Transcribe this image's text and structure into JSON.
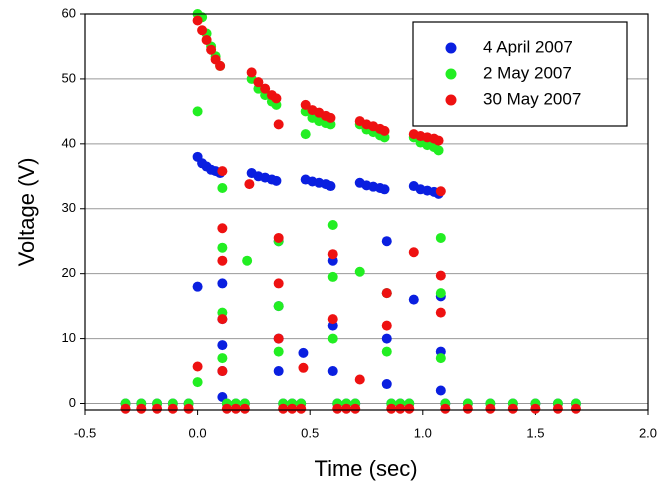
{
  "chart_data": {
    "type": "scatter",
    "x_label": "Time (sec)",
    "y_label": "Voltage (V)",
    "xlim": [
      -0.5,
      2.0
    ],
    "ylim": [
      -1,
      60
    ],
    "xticks": [
      -0.5,
      {
        "value": 0,
        "label": "0.0"
      },
      0.5,
      {
        "value": 1,
        "label": "1.0"
      },
      1.5,
      {
        "value": 2,
        "label": "2.0"
      }
    ],
    "yticks": [
      0,
      10,
      20,
      30,
      40,
      50,
      60
    ],
    "grid": true,
    "legend": "upper right",
    "series": [
      {
        "name": "4 April 2007",
        "color": "#0a1fe0",
        "x": [
          -0.32,
          -0.25,
          -0.18,
          -0.11,
          -0.04,
          0.0,
          0.0,
          0.02,
          0.04,
          0.06,
          0.08,
          0.1,
          0.11,
          0.11,
          0.11,
          0.11,
          0.11,
          0.13,
          0.17,
          0.21,
          0.24,
          0.27,
          0.3,
          0.33,
          0.35,
          0.36,
          0.36,
          0.36,
          0.36,
          0.38,
          0.42,
          0.46,
          0.47,
          0.48,
          0.51,
          0.54,
          0.57,
          0.59,
          0.6,
          0.6,
          0.6,
          0.62,
          0.66,
          0.7,
          0.72,
          0.75,
          0.78,
          0.81,
          0.83,
          0.84,
          0.84,
          0.84,
          0.84,
          0.86,
          0.9,
          0.94,
          0.96,
          0.96,
          0.99,
          1.02,
          1.05,
          1.07,
          1.08,
          1.08,
          1.08,
          1.1,
          1.2,
          1.3,
          1.4,
          1.5,
          1.6,
          1.68
        ],
        "y": [
          0,
          0,
          0,
          0,
          0,
          18,
          38,
          37,
          36.5,
          36,
          35.8,
          35.5,
          18.5,
          13,
          9,
          5,
          1,
          0,
          0,
          0,
          35.5,
          35,
          34.8,
          34.5,
          34.3,
          25,
          15,
          10,
          5,
          0,
          0,
          0,
          7.8,
          34.5,
          34.2,
          34,
          33.8,
          33.5,
          22,
          12,
          5,
          0,
          0,
          0,
          34,
          33.6,
          33.4,
          33.2,
          33,
          25,
          17,
          10,
          3,
          0,
          0,
          0,
          16,
          33.5,
          33,
          32.8,
          32.6,
          32.3,
          16.5,
          8,
          2,
          0,
          0,
          0,
          0,
          0,
          0,
          0
        ]
      },
      {
        "name": "2 May 2007",
        "color": "#22ee22",
        "x": [
          -0.32,
          -0.25,
          -0.18,
          -0.11,
          -0.04,
          0.0,
          0.0,
          0.02,
          0.0,
          0.04,
          0.06,
          0.08,
          0.1,
          0.11,
          0.11,
          0.11,
          0.11,
          0.13,
          0.17,
          0.21,
          0.22,
          0.24,
          0.27,
          0.3,
          0.33,
          0.35,
          0.36,
          0.36,
          0.36,
          0.38,
          0.42,
          0.46,
          0.48,
          0.48,
          0.51,
          0.54,
          0.57,
          0.59,
          0.6,
          0.6,
          0.6,
          0.62,
          0.66,
          0.7,
          0.72,
          0.72,
          0.75,
          0.78,
          0.81,
          0.83,
          0.84,
          0.84,
          0.86,
          0.9,
          0.94,
          0.96,
          0.99,
          1.02,
          1.05,
          1.07,
          1.08,
          1.08,
          1.08,
          1.1,
          1.2,
          1.3,
          1.4,
          1.5,
          1.6,
          1.68
        ],
        "y": [
          0,
          0,
          0,
          0,
          0,
          3.3,
          60,
          59.5,
          45,
          57,
          55,
          53.5,
          52,
          33.2,
          24,
          14,
          7,
          0,
          0,
          0,
          22,
          50,
          48.5,
          47.5,
          46.5,
          46,
          25,
          15,
          8,
          0,
          0,
          0,
          41.5,
          45,
          44,
          43.5,
          43.2,
          43,
          27.5,
          19.5,
          10,
          0,
          0,
          0,
          20.3,
          43,
          42.2,
          41.8,
          41.3,
          41,
          17,
          8,
          0,
          0,
          0,
          41,
          40.2,
          39.8,
          39.5,
          39,
          25.5,
          17,
          7,
          0,
          0,
          0,
          0,
          0,
          0,
          0
        ]
      },
      {
        "name": "30 May 2007",
        "color": "#ee1111",
        "x": [
          -0.32,
          -0.25,
          -0.18,
          -0.11,
          -0.04,
          0.0,
          0.0,
          0.02,
          0.04,
          0.06,
          0.08,
          0.1,
          0.11,
          0.11,
          0.11,
          0.11,
          0.11,
          0.13,
          0.17,
          0.21,
          0.23,
          0.24,
          0.27,
          0.3,
          0.33,
          0.35,
          0.36,
          0.36,
          0.36,
          0.36,
          0.38,
          0.42,
          0.46,
          0.47,
          0.48,
          0.51,
          0.54,
          0.57,
          0.59,
          0.6,
          0.6,
          0.62,
          0.66,
          0.7,
          0.72,
          0.72,
          0.75,
          0.78,
          0.81,
          0.83,
          0.84,
          0.84,
          0.86,
          0.9,
          0.94,
          0.96,
          0.96,
          0.99,
          1.02,
          1.05,
          1.07,
          1.08,
          1.08,
          1.08,
          1.1,
          1.2,
          1.3,
          1.4,
          1.5,
          1.6,
          1.68
        ],
        "y": [
          -0.8,
          -0.8,
          -0.8,
          -0.8,
          -0.8,
          5.7,
          59,
          57.5,
          56,
          54.5,
          53,
          52,
          35.8,
          27,
          22,
          13,
          5,
          -0.8,
          -0.8,
          -0.8,
          33.8,
          51,
          49.5,
          48.5,
          47.5,
          47,
          43,
          25.5,
          18.5,
          10,
          -0.8,
          -0.8,
          -0.8,
          5.5,
          46,
          45.2,
          44.8,
          44.3,
          44,
          23,
          13,
          -0.8,
          -0.8,
          -0.8,
          3.7,
          43.5,
          43,
          42.7,
          42.3,
          42,
          17,
          12,
          -0.8,
          -0.8,
          -0.8,
          23.3,
          41.5,
          41.2,
          41,
          40.8,
          40.5,
          32.7,
          19.7,
          14,
          -0.8,
          -0.8,
          -0.8,
          -0.8,
          -0.8,
          -0.8,
          -0.8
        ]
      }
    ]
  }
}
